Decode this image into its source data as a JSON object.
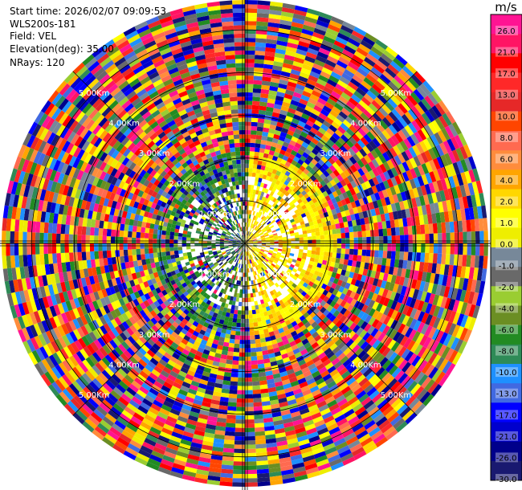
{
  "info": {
    "start_time": "Start time: 2026/02/07 09:09:53",
    "instrument": "WLS200s-181",
    "field": "Field: VEL",
    "elevation": "Elevation(deg): 35.00",
    "nrays": "NRays: 120"
  },
  "colorbar": {
    "unit": "m/s",
    "ticks": [
      "26.0",
      "21.0",
      "17.0",
      "13.0",
      "10.0",
      "8.0",
      "6.0",
      "4.0",
      "2.0",
      "1.0",
      "0.0",
      "-1.0",
      "-2.0",
      "-4.0",
      "-6.0",
      "-8.0",
      "-10.0",
      "-13.0",
      "-17.0",
      "-21.0",
      "-26.0",
      "-30.0"
    ],
    "colors": [
      "#ff1493",
      "#ff1464",
      "#ff0000",
      "#ff2828",
      "#e62828",
      "#ff4500",
      "#ff6a50",
      "#ff8c3c",
      "#ffa500",
      "#ffd700",
      "#ffff00",
      "#eeee00",
      "#778899",
      "#696969",
      "#9acd32",
      "#6b8e23",
      "#228b22",
      "#2e8b57",
      "#1e90ff",
      "#4169e1",
      "#0000ff",
      "#0000cd",
      "#00008b",
      "#191970"
    ]
  },
  "chart_data": {
    "type": "heatmap",
    "projection": "polar (PPI)",
    "field": "VEL",
    "unit": "m/s",
    "elevation_deg": 35.0,
    "n_rays": 120,
    "range_rings_km": [
      1.0,
      2.0,
      3.0,
      4.0,
      5.0
    ],
    "range_ring_labels": [
      "1.00Km",
      "2.00Km",
      "3.00Km",
      "4.00Km",
      "5.00Km"
    ],
    "max_range_km": 5.7,
    "color_scale_ms": [
      -30.0,
      26.0
    ],
    "pattern": "near-range: negative (green/blue) velocities to the west, positive (yellow/orange) to the east; beyond ~2 km mostly noise"
  }
}
